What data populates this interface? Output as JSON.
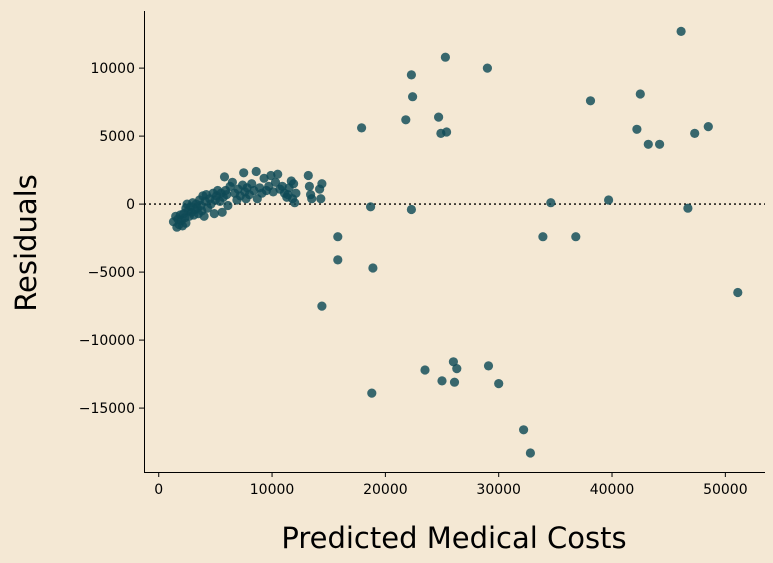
{
  "chart_data": {
    "type": "scatter",
    "title": "",
    "xlabel": "Predicted Medical Costs",
    "ylabel": "Residuals",
    "xlim": [
      -1300,
      53500
    ],
    "ylim": [
      -19700,
      14200
    ],
    "xticks": [
      0,
      10000,
      20000,
      30000,
      40000,
      50000
    ],
    "yticks": [
      -15000,
      -10000,
      -5000,
      0,
      5000,
      10000
    ],
    "reference_line": {
      "y": 0,
      "style": "dotted"
    },
    "grid": false,
    "colors": {
      "background": "#f4e8d4",
      "point": "#0f4a57",
      "axis": "#000000"
    },
    "series": [
      {
        "points": [
          [
            1300,
            -1300
          ],
          [
            1500,
            -900
          ],
          [
            1600,
            -1700
          ],
          [
            1700,
            -1100
          ],
          [
            1800,
            -1500
          ],
          [
            1900,
            -800
          ],
          [
            2000,
            -1200
          ],
          [
            2100,
            -1600
          ],
          [
            2200,
            -700
          ],
          [
            2300,
            -1000
          ],
          [
            2400,
            -300
          ],
          [
            2400,
            -1400
          ],
          [
            2500,
            0
          ],
          [
            2600,
            -500
          ],
          [
            2700,
            -900
          ],
          [
            2800,
            -200
          ],
          [
            2900,
            -600
          ],
          [
            3000,
            100
          ],
          [
            3100,
            -800
          ],
          [
            3200,
            -400
          ],
          [
            3300,
            0
          ],
          [
            3400,
            -300
          ],
          [
            3500,
            -700
          ],
          [
            3600,
            300
          ],
          [
            3700,
            -100
          ],
          [
            3800,
            -500
          ],
          [
            3900,
            600
          ],
          [
            4000,
            -900
          ],
          [
            4100,
            200
          ],
          [
            4200,
            700
          ],
          [
            4300,
            -300
          ],
          [
            4500,
            400
          ],
          [
            4600,
            0
          ],
          [
            4800,
            800
          ],
          [
            4900,
            -700
          ],
          [
            5000,
            300
          ],
          [
            5100,
            600
          ],
          [
            5200,
            1000
          ],
          [
            5400,
            200
          ],
          [
            5500,
            800
          ],
          [
            5600,
            -600
          ],
          [
            5700,
            500
          ],
          [
            5800,
            2000
          ],
          [
            5900,
            1000
          ],
          [
            6000,
            700
          ],
          [
            6100,
            -100
          ],
          [
            6300,
            1300
          ],
          [
            6500,
            1600
          ],
          [
            6700,
            800
          ],
          [
            6900,
            300
          ],
          [
            7000,
            1100
          ],
          [
            7200,
            600
          ],
          [
            7400,
            1400
          ],
          [
            7500,
            2300
          ],
          [
            7600,
            900
          ],
          [
            7700,
            400
          ],
          [
            7800,
            1200
          ],
          [
            8000,
            700
          ],
          [
            8200,
            1500
          ],
          [
            8400,
            1000
          ],
          [
            8600,
            2400
          ],
          [
            8700,
            400
          ],
          [
            8900,
            1200
          ],
          [
            9100,
            800
          ],
          [
            9300,
            1900
          ],
          [
            9500,
            1000
          ],
          [
            9700,
            1300
          ],
          [
            9900,
            2100
          ],
          [
            10100,
            900
          ],
          [
            10300,
            1600
          ],
          [
            10500,
            2200
          ],
          [
            10700,
            1100
          ],
          [
            10900,
            1300
          ],
          [
            11100,
            800
          ],
          [
            11300,
            500
          ],
          [
            11500,
            1200
          ],
          [
            11700,
            1700
          ],
          [
            11800,
            400
          ],
          [
            12000,
            100
          ],
          [
            12100,
            800
          ],
          [
            11900,
            1500
          ],
          [
            11400,
            700
          ],
          [
            13200,
            2100
          ],
          [
            13300,
            1300
          ],
          [
            13400,
            700
          ],
          [
            13500,
            400
          ],
          [
            14200,
            1100
          ],
          [
            14300,
            400
          ],
          [
            14400,
            1500
          ],
          [
            14400,
            -7500
          ],
          [
            15800,
            -2400
          ],
          [
            15800,
            -4100
          ],
          [
            17900,
            5600
          ],
          [
            18700,
            -200
          ],
          [
            18900,
            -4700
          ],
          [
            18800,
            -13900
          ],
          [
            21800,
            6200
          ],
          [
            22300,
            9500
          ],
          [
            22400,
            7900
          ],
          [
            22300,
            -400
          ],
          [
            23500,
            -12200
          ],
          [
            24700,
            6400
          ],
          [
            24900,
            5200
          ],
          [
            25300,
            10800
          ],
          [
            25400,
            5300
          ],
          [
            25000,
            -13000
          ],
          [
            26000,
            -11600
          ],
          [
            26100,
            -13100
          ],
          [
            26300,
            -12100
          ],
          [
            29000,
            10000
          ],
          [
            29100,
            -11900
          ],
          [
            30000,
            -13200
          ],
          [
            32200,
            -16600
          ],
          [
            32800,
            -18300
          ],
          [
            33900,
            -2400
          ],
          [
            34600,
            100
          ],
          [
            36800,
            -2400
          ],
          [
            38100,
            7600
          ],
          [
            39700,
            300
          ],
          [
            42200,
            5500
          ],
          [
            42500,
            8100
          ],
          [
            43200,
            4400
          ],
          [
            44200,
            4400
          ],
          [
            46100,
            12700
          ],
          [
            46700,
            -300
          ],
          [
            47300,
            5200
          ],
          [
            48500,
            5700
          ],
          [
            51100,
            -6500
          ]
        ]
      }
    ]
  }
}
